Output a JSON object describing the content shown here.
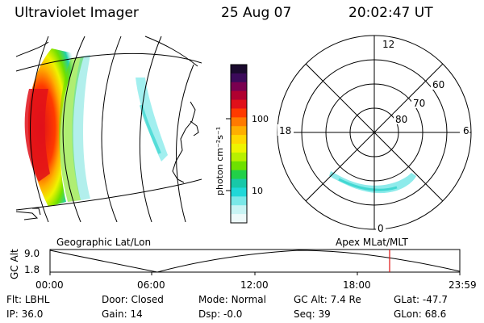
{
  "header": {
    "instrument": "Ultraviolet Imager",
    "date": "25 Aug 07",
    "time": "20:02:47 UT"
  },
  "colorbar": {
    "label": "photon cm⁻²s⁻¹",
    "ticks": [
      "100",
      "10"
    ],
    "colors": [
      "#1a0a2e",
      "#3b0a5a",
      "#7a0050",
      "#b00030",
      "#e0101a",
      "#ff3a00",
      "#ff7a00",
      "#ffae00",
      "#ffd800",
      "#eef400",
      "#b8f000",
      "#6ee000",
      "#22d048",
      "#18c8a8",
      "#20d8d8",
      "#7ae8e8",
      "#c8f4f4",
      "#eefafa"
    ]
  },
  "polar": {
    "mlt_labels": {
      "top": "12",
      "left": "18",
      "right": "6",
      "bottom": "0"
    },
    "lat_labels": [
      "60",
      "70",
      "80"
    ]
  },
  "timeline": {
    "left_label": "Geographic Lat/Lon",
    "right_label": "Apex MLat/MLT",
    "axis_title": "GC Alt",
    "y_ticks": [
      "9.0",
      "1.8"
    ],
    "x_ticks": [
      "00:00",
      "06:00",
      "12:00",
      "18:00",
      "23:59"
    ],
    "marker_color": "#e01010"
  },
  "info": {
    "row1": [
      {
        "label": "Flt:",
        "value": "LBHL"
      },
      {
        "label": "Door:",
        "value": "Closed"
      },
      {
        "label": "Mode:",
        "value": "Normal"
      },
      {
        "label": "GC Alt:",
        "value": "7.4 Re"
      },
      {
        "label": "GLat:",
        "value": "-47.7"
      }
    ],
    "row2": [
      {
        "label": "IP:",
        "value": "36.0"
      },
      {
        "label": "Gain:",
        "value": "14"
      },
      {
        "label": "Dsp:",
        "value": "-0.0"
      },
      {
        "label": "Seq:",
        "value": "39"
      },
      {
        "label": "GLon:",
        "value": "68.6"
      }
    ]
  }
}
